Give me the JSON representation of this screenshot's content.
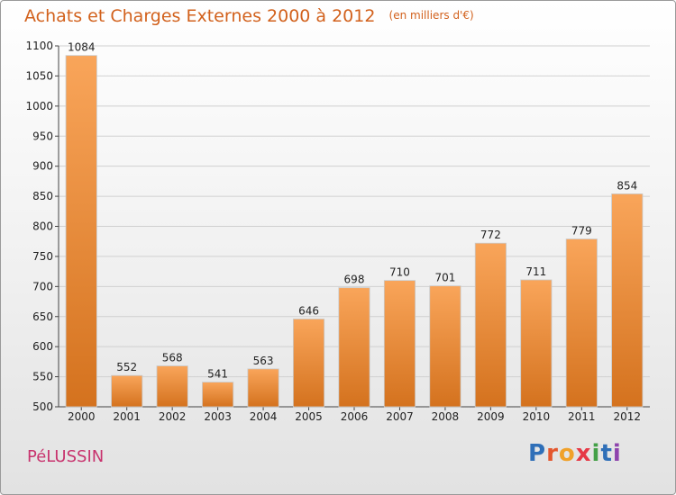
{
  "header": {
    "title": "Achats et Charges Externes 2000 à 2012",
    "subtitle": "(en milliers d'€)"
  },
  "footer": {
    "place": "PéLUSSIN",
    "logo_text": "Proxiti"
  },
  "colors": {
    "title": "#d2611c",
    "place": "#c8336e",
    "bar_light": "#f9a55a",
    "bar_dark": "#d4721e",
    "grid": "#d0d0d0",
    "logo_letters": [
      "#2f6fb8",
      "#e4572e",
      "#f0a12a",
      "#e63946",
      "#43a047",
      "#2f6fb8",
      "#8e44ad"
    ]
  },
  "chart_data": {
    "type": "bar",
    "title": "Achats et Charges Externes 2000 à 2012",
    "subtitle": "(en milliers d'€)",
    "categories": [
      "2000",
      "2001",
      "2002",
      "2003",
      "2004",
      "2005",
      "2006",
      "2007",
      "2008",
      "2009",
      "2010",
      "2011",
      "2012"
    ],
    "values": [
      1084,
      552,
      568,
      541,
      563,
      646,
      698,
      710,
      701,
      772,
      711,
      779,
      854
    ],
    "ylim": [
      500,
      1100
    ],
    "yticks": [
      500,
      550,
      600,
      650,
      700,
      750,
      800,
      850,
      900,
      950,
      1000,
      1050,
      1100
    ],
    "xlabel": "",
    "ylabel": "",
    "grid": true,
    "data_labels": true
  }
}
